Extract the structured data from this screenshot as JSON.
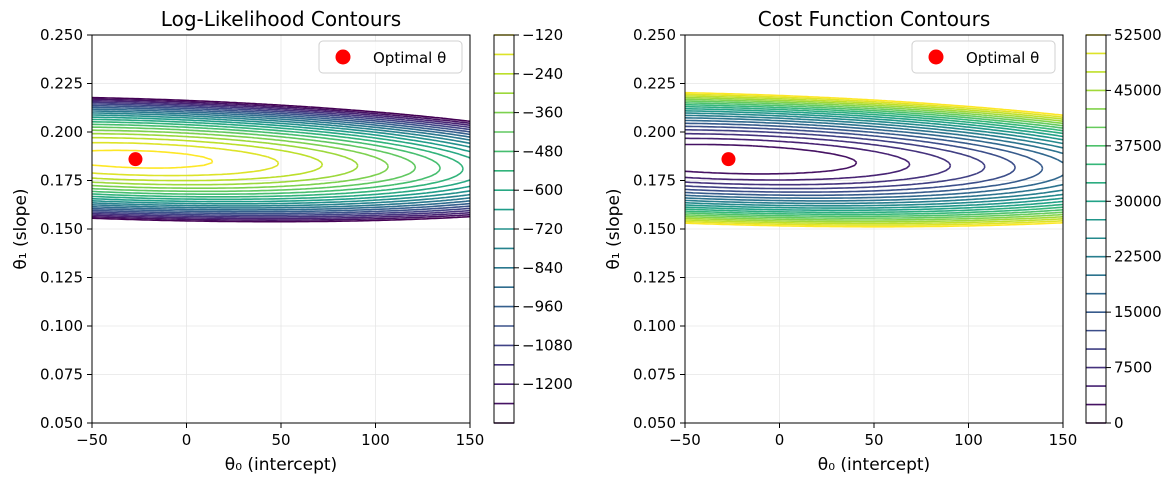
{
  "chart_data": [
    {
      "type": "contour",
      "title": "Log-Likelihood Contours",
      "xlabel": "θ₀ (intercept)",
      "ylabel": "θ₁ (slope)",
      "xlim": [
        -50,
        150
      ],
      "ylim": [
        0.05,
        0.25
      ],
      "x_ticks": [
        -50,
        0,
        50,
        100,
        150
      ],
      "y_ticks": [
        0.05,
        0.075,
        0.1,
        0.125,
        0.15,
        0.175,
        0.2,
        0.225,
        0.25
      ],
      "y_tick_labels": [
        "0.050",
        "0.075",
        "0.100",
        "0.125",
        "0.150",
        "0.175",
        "0.200",
        "0.225",
        "0.250"
      ],
      "grid": true,
      "colormap": "viridis",
      "colorbar_range": [
        -1320,
        -120
      ],
      "colorbar_ticks": [
        -120,
        -240,
        -360,
        -480,
        -600,
        -720,
        -840,
        -960,
        -1080,
        -1200
      ],
      "colorbar_tick_labels": [
        "−120",
        "−240",
        "−360",
        "−480",
        "−600",
        "−720",
        "−840",
        "−960",
        "−1080",
        "−1200"
      ],
      "levels": [
        -1320,
        -1260,
        -1200,
        -1140,
        -1080,
        -1020,
        -960,
        -900,
        -840,
        -780,
        -720,
        -660,
        -600,
        -540,
        -480,
        -420,
        -360,
        -300,
        -240,
        -180,
        -120
      ],
      "optimal_point": {
        "x": -27,
        "y": 0.186,
        "color": "#ff0000"
      },
      "legend": {
        "label": "Optimal θ",
        "position": "upper right"
      },
      "surface": {
        "kind": "loglik",
        "center_x": -27,
        "center_y": 0.186,
        "a": 0.00044,
        "b": 2.0,
        "c": 35000,
        "base": -95
      }
    },
    {
      "type": "contour",
      "title": "Cost Function Contours",
      "xlabel": "θ₀ (intercept)",
      "ylabel": "θ₁ (slope)",
      "xlim": [
        -50,
        150
      ],
      "ylim": [
        0.05,
        0.25
      ],
      "x_ticks": [
        -50,
        0,
        50,
        100,
        150
      ],
      "y_ticks": [
        0.05,
        0.075,
        0.1,
        0.125,
        0.15,
        0.175,
        0.2,
        0.225,
        0.25
      ],
      "y_tick_labels": [
        "0.050",
        "0.075",
        "0.100",
        "0.125",
        "0.150",
        "0.175",
        "0.200",
        "0.225",
        "0.250"
      ],
      "grid": true,
      "colormap": "viridis",
      "colorbar_range": [
        0,
        52500
      ],
      "colorbar_ticks": [
        0,
        7500,
        15000,
        22500,
        30000,
        37500,
        45000,
        52500
      ],
      "colorbar_tick_labels": [
        "0",
        "7500",
        "15000",
        "22500",
        "30000",
        "37500",
        "45000",
        "52500"
      ],
      "levels": [
        0,
        2500,
        5000,
        7500,
        10000,
        12500,
        15000,
        17500,
        20000,
        22500,
        25000,
        27500,
        30000,
        32500,
        35000,
        37500,
        40000,
        42500,
        45000,
        47500,
        50000,
        52500
      ],
      "optimal_point": {
        "x": -27,
        "y": 0.186,
        "color": "#ff0000"
      },
      "legend": {
        "label": "Optimal θ",
        "position": "upper right"
      },
      "surface": {
        "kind": "cost",
        "center_x": -27,
        "center_y": 0.186,
        "a": 0.00044,
        "b": 2.0,
        "c": 35000,
        "scale": 1000
      }
    }
  ]
}
